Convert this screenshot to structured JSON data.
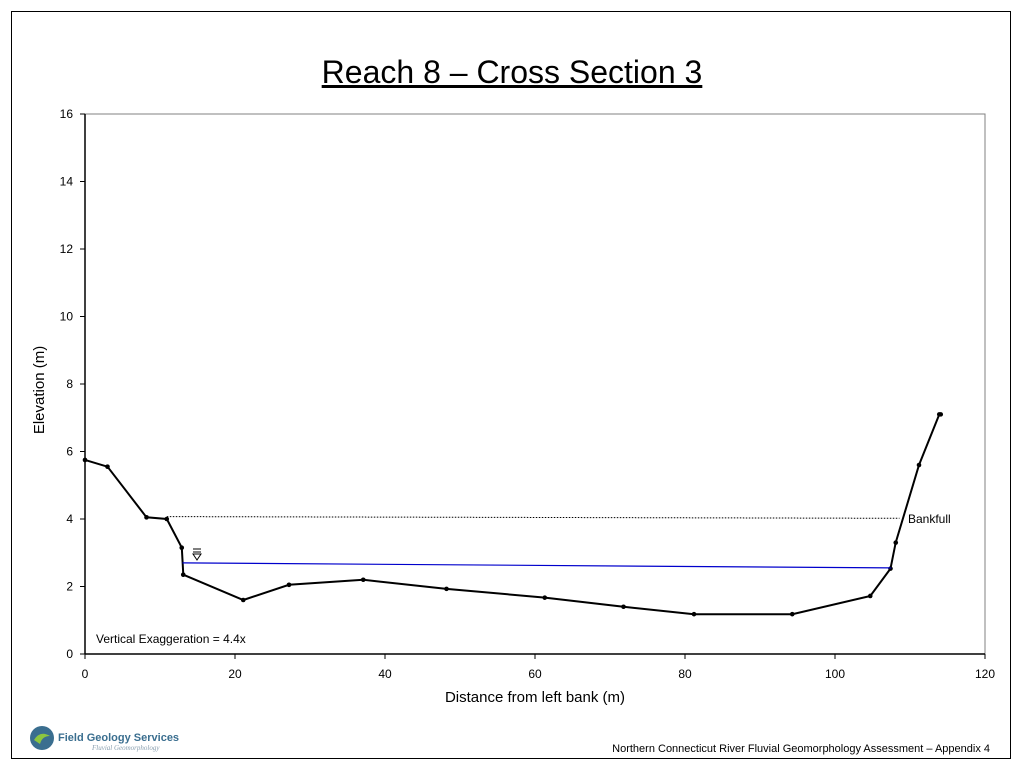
{
  "slide": {
    "title": "Reach 8 – Cross Section 3",
    "footer": "Northern Connecticut River Fluvial Geomorphology Assessment – Appendix 4",
    "logo_text": "Field Geology Services",
    "logo_subtext": "Fluvial Geomorphology",
    "logo_icon": "river-swirl-icon"
  },
  "chart_data": {
    "type": "line",
    "xlabel": "Distance from left bank (m)",
    "ylabel": "Elevation (m)",
    "xlim": [
      0,
      120
    ],
    "ylim": [
      0,
      16
    ],
    "xticks": [
      0,
      20,
      40,
      60,
      80,
      100,
      120
    ],
    "yticks": [
      0,
      2,
      4,
      6,
      8,
      10,
      12,
      14,
      16
    ],
    "grid": false,
    "series": [
      {
        "kind": "ground",
        "color": "#000000",
        "points": [
          [
            0,
            5.75
          ],
          [
            3,
            5.55
          ],
          [
            8.2,
            4.05
          ],
          [
            10.9,
            4.0
          ],
          [
            12.9,
            3.15
          ],
          [
            13.1,
            2.35
          ],
          [
            21.1,
            1.6
          ],
          [
            27.2,
            2.05
          ],
          [
            37.1,
            2.2
          ],
          [
            48.2,
            1.93
          ],
          [
            61.3,
            1.67
          ],
          [
            71.8,
            1.4
          ],
          [
            81.2,
            1.18
          ],
          [
            94.3,
            1.18
          ],
          [
            104.7,
            1.72
          ],
          [
            107.4,
            2.53
          ],
          [
            108.1,
            3.3
          ],
          [
            111.2,
            5.6
          ],
          [
            113.9,
            7.1
          ],
          [
            114.1,
            7.1
          ]
        ]
      },
      {
        "kind": "water_surface",
        "color": "#0000cc",
        "points": [
          [
            13,
            2.7
          ],
          [
            107.5,
            2.55
          ]
        ]
      },
      {
        "kind": "bankfull",
        "color": "#000000",
        "points": [
          [
            10.9,
            4.07
          ],
          [
            108.6,
            4.02
          ]
        ]
      }
    ],
    "annotations": {
      "bankfull_label": "Bankfull",
      "vertical_exaggeration": "Vertical Exaggeration = 4.4x",
      "water_symbol": "water-surface-icon"
    }
  }
}
